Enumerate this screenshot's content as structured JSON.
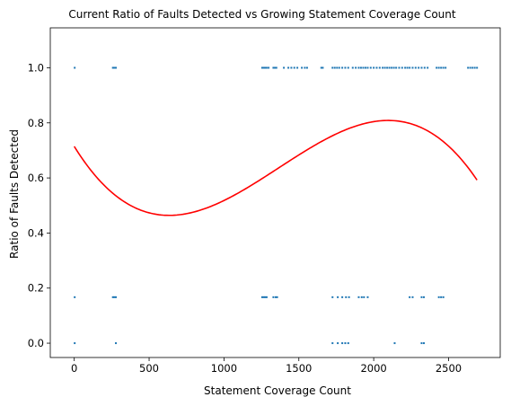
{
  "chart_data": {
    "type": "scatter",
    "title": "Current Ratio of Faults Detected vs Growing Statement Coverage Count",
    "xlabel": "Statement Coverage Count",
    "ylabel": "Ratio of Faults Detected",
    "xlim": [
      -160,
      2845
    ],
    "ylim": [
      -0.052,
      1.145
    ],
    "xticks": [
      0,
      500,
      1000,
      1500,
      2000,
      2500
    ],
    "xtick_labels": [
      "0",
      "500",
      "1000",
      "1500",
      "2000",
      "2500"
    ],
    "yticks": [
      0.0,
      0.2,
      0.4,
      0.6,
      0.8,
      1.0
    ],
    "ytick_labels": [
      "0.0",
      "0.2",
      "0.4",
      "0.6",
      "0.8",
      "1.0"
    ],
    "grid": false,
    "series": [
      {
        "kind": "scatter",
        "color": "#1f77b4",
        "points": [
          [
            3,
            1.0
          ],
          [
            258,
            1.0
          ],
          [
            268,
            1.0
          ],
          [
            278,
            1.0
          ],
          [
            1255,
            1.0
          ],
          [
            1265,
            1.0
          ],
          [
            1275,
            1.0
          ],
          [
            1285,
            1.0
          ],
          [
            1298,
            1.0
          ],
          [
            1330,
            1.0
          ],
          [
            1340,
            1.0
          ],
          [
            1350,
            1.0
          ],
          [
            1400,
            1.0
          ],
          [
            1430,
            1.0
          ],
          [
            1450,
            1.0
          ],
          [
            1470,
            1.0
          ],
          [
            1490,
            1.0
          ],
          [
            1520,
            1.0
          ],
          [
            1540,
            1.0
          ],
          [
            1555,
            1.0
          ],
          [
            1650,
            1.0
          ],
          [
            1660,
            1.0
          ],
          [
            1725,
            1.0
          ],
          [
            1740,
            1.0
          ],
          [
            1755,
            1.0
          ],
          [
            1770,
            1.0
          ],
          [
            1790,
            1.0
          ],
          [
            1810,
            1.0
          ],
          [
            1830,
            1.0
          ],
          [
            1860,
            1.0
          ],
          [
            1880,
            1.0
          ],
          [
            1900,
            1.0
          ],
          [
            1915,
            1.0
          ],
          [
            1930,
            1.0
          ],
          [
            1945,
            1.0
          ],
          [
            1960,
            1.0
          ],
          [
            1980,
            1.0
          ],
          [
            2000,
            1.0
          ],
          [
            2020,
            1.0
          ],
          [
            2040,
            1.0
          ],
          [
            2060,
            1.0
          ],
          [
            2075,
            1.0
          ],
          [
            2090,
            1.0
          ],
          [
            2105,
            1.0
          ],
          [
            2120,
            1.0
          ],
          [
            2135,
            1.0
          ],
          [
            2150,
            1.0
          ],
          [
            2170,
            1.0
          ],
          [
            2190,
            1.0
          ],
          [
            2210,
            1.0
          ],
          [
            2225,
            1.0
          ],
          [
            2240,
            1.0
          ],
          [
            2260,
            1.0
          ],
          [
            2280,
            1.0
          ],
          [
            2300,
            1.0
          ],
          [
            2320,
            1.0
          ],
          [
            2340,
            1.0
          ],
          [
            2360,
            1.0
          ],
          [
            2420,
            1.0
          ],
          [
            2435,
            1.0
          ],
          [
            2450,
            1.0
          ],
          [
            2465,
            1.0
          ],
          [
            2480,
            1.0
          ],
          [
            2630,
            1.0
          ],
          [
            2645,
            1.0
          ],
          [
            2660,
            1.0
          ],
          [
            2675,
            1.0
          ],
          [
            2690,
            1.0
          ],
          [
            3,
            0.167
          ],
          [
            258,
            0.167
          ],
          [
            268,
            0.167
          ],
          [
            278,
            0.167
          ],
          [
            1255,
            0.167
          ],
          [
            1265,
            0.167
          ],
          [
            1275,
            0.167
          ],
          [
            1285,
            0.167
          ],
          [
            1330,
            0.167
          ],
          [
            1345,
            0.167
          ],
          [
            1355,
            0.167
          ],
          [
            1725,
            0.167
          ],
          [
            1760,
            0.167
          ],
          [
            1790,
            0.167
          ],
          [
            1815,
            0.167
          ],
          [
            1835,
            0.167
          ],
          [
            1900,
            0.167
          ],
          [
            1920,
            0.167
          ],
          [
            1935,
            0.167
          ],
          [
            1960,
            0.167
          ],
          [
            2240,
            0.167
          ],
          [
            2260,
            0.167
          ],
          [
            2320,
            0.167
          ],
          [
            2335,
            0.167
          ],
          [
            2435,
            0.167
          ],
          [
            2450,
            0.167
          ],
          [
            2465,
            0.167
          ],
          [
            3,
            0.0
          ],
          [
            278,
            0.0
          ],
          [
            1725,
            0.0
          ],
          [
            1760,
            0.0
          ],
          [
            1790,
            0.0
          ],
          [
            1810,
            0.0
          ],
          [
            1830,
            0.0
          ],
          [
            2140,
            0.0
          ],
          [
            2320,
            0.0
          ],
          [
            2335,
            0.0
          ]
        ]
      },
      {
        "kind": "line",
        "color": "#ff0000",
        "polynomial": [
          0.71451,
          -0.00087847,
          9.02336e-07,
          -2.20316e-10
        ],
        "x_range": [
          0,
          2690
        ]
      }
    ]
  }
}
